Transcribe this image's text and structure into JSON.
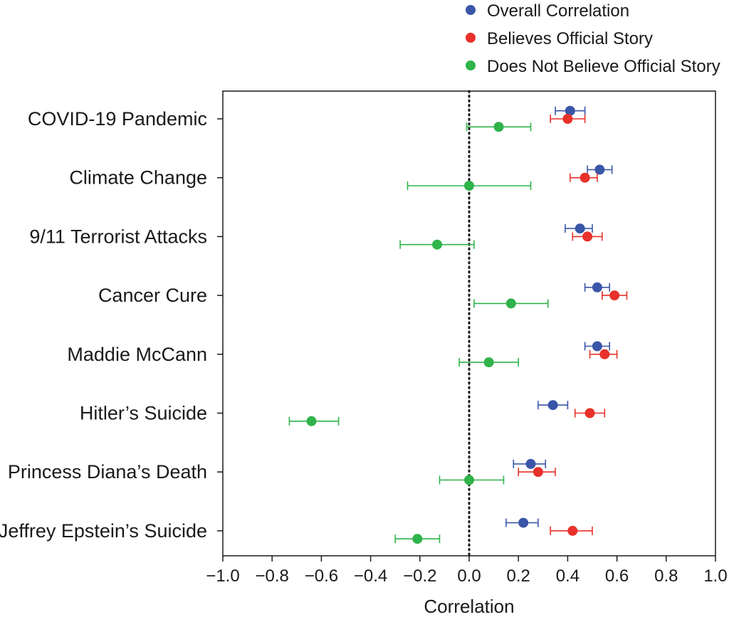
{
  "chart_data": {
    "type": "scatter",
    "orientation": "horizontal",
    "xlabel": "Correlation",
    "xlim": [
      -1.0,
      1.0
    ],
    "xticks": [
      -1.0,
      -0.8,
      -0.6,
      -0.4,
      -0.2,
      0.0,
      0.2,
      0.4,
      0.6,
      0.8,
      1.0
    ],
    "xtick_labels": [
      "−1.0",
      "−0.8",
      "−0.6",
      "−0.4",
      "−0.2",
      "0.0",
      "0.2",
      "0.4",
      "0.6",
      "0.8",
      "1.0"
    ],
    "reference_line": {
      "x": 0.0,
      "style": "dotted"
    },
    "legend_placement": "top-right",
    "categories": [
      "COVID-19 Pandemic",
      "Climate Change",
      "9/11 Terrorist Attacks",
      "Cancer Cure",
      "Maddie McCann",
      "Hitler’s Suicide",
      "Princess Diana’s Death",
      "Jeffrey Epstein’s Suicide"
    ],
    "series": [
      {
        "name": "Overall Correlation",
        "color": "#3a56a8",
        "values": [
          0.41,
          0.53,
          0.45,
          0.52,
          0.52,
          0.34,
          0.25,
          0.22
        ],
        "lower": [
          0.35,
          0.48,
          0.39,
          0.47,
          0.47,
          0.28,
          0.18,
          0.15
        ],
        "upper": [
          0.47,
          0.58,
          0.5,
          0.57,
          0.57,
          0.4,
          0.31,
          0.28
        ]
      },
      {
        "name": "Believes Official Story",
        "color": "#e8312a",
        "values": [
          0.4,
          0.47,
          0.48,
          0.59,
          0.55,
          0.49,
          0.28,
          0.42
        ],
        "lower": [
          0.33,
          0.41,
          0.42,
          0.54,
          0.49,
          0.43,
          0.2,
          0.33
        ],
        "upper": [
          0.47,
          0.52,
          0.54,
          0.64,
          0.6,
          0.55,
          0.35,
          0.5
        ]
      },
      {
        "name": "Does Not Believe Official Story",
        "color": "#2fb34a",
        "values": [
          0.12,
          0.0,
          -0.13,
          0.17,
          0.08,
          -0.64,
          0.0,
          -0.21
        ],
        "lower": [
          -0.01,
          -0.25,
          -0.28,
          0.02,
          -0.04,
          -0.73,
          -0.12,
          -0.3
        ],
        "upper": [
          0.25,
          0.25,
          0.02,
          0.32,
          0.2,
          -0.53,
          0.14,
          -0.12
        ]
      }
    ]
  }
}
